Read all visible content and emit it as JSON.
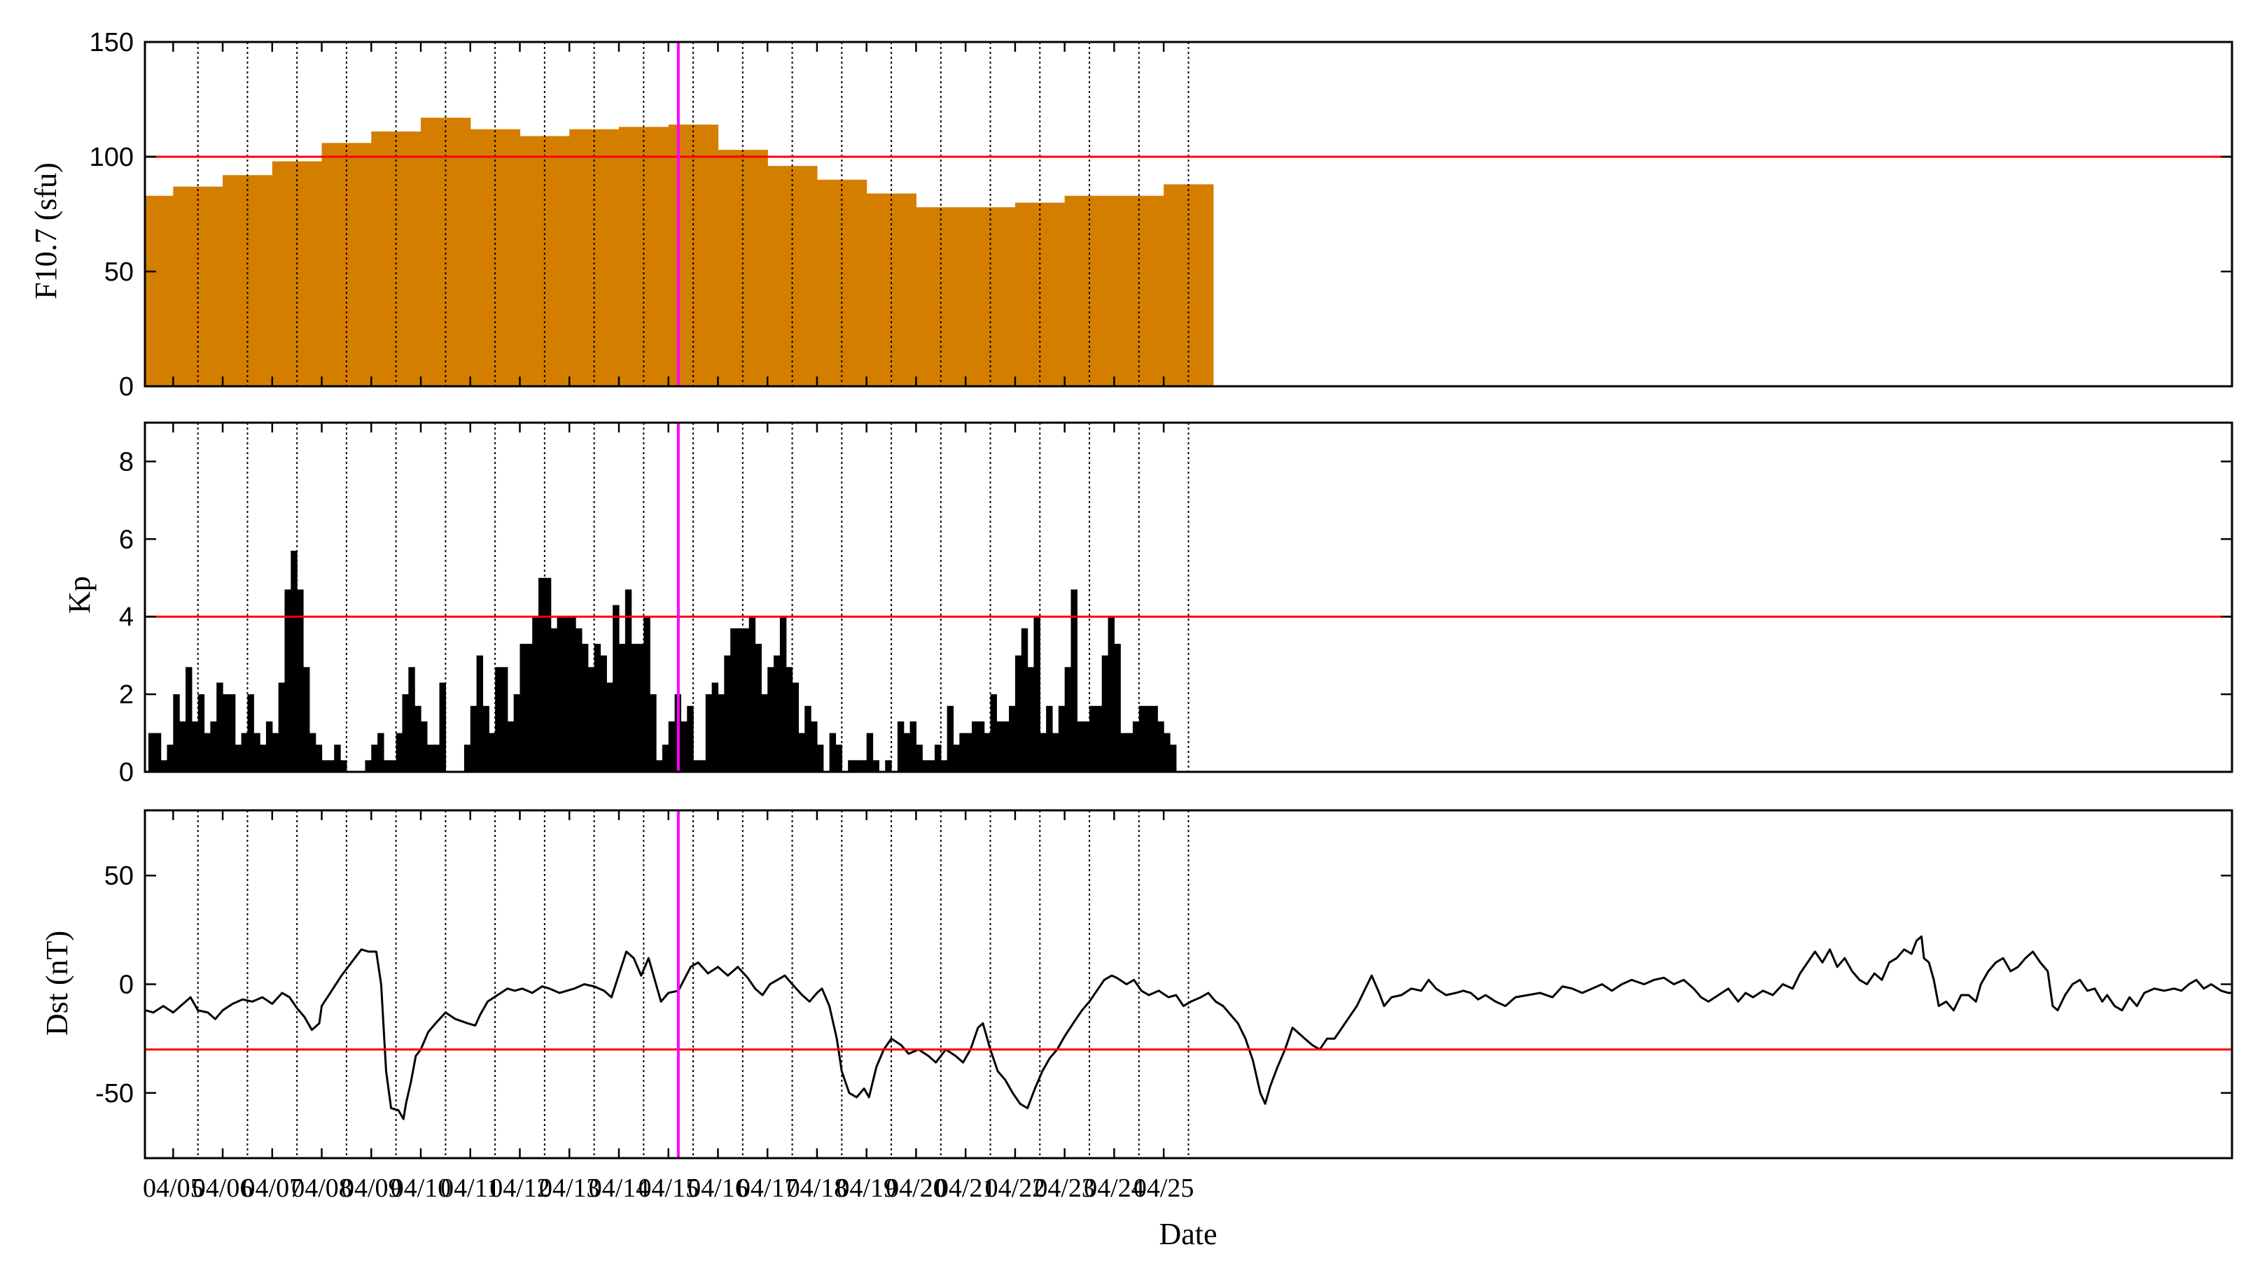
{
  "x_labels": [
    "04/05",
    "04/06",
    "04/07",
    "04/08",
    "04/09",
    "04/10",
    "04/11",
    "04/12",
    "04/13",
    "04/14",
    "04/15",
    "04/16",
    "04/17",
    "04/18",
    "04/19",
    "04/20",
    "04/21",
    "04/22",
    "04/23",
    "04/24",
    "04/25"
  ],
  "x_axis_title": "Date",
  "colors": {
    "f107_bar": "#D47E00",
    "kp_bar": "#000000",
    "dst_line": "#000000",
    "threshold": "#FF0000",
    "marker": "#FF00FF"
  },
  "chart_data": [
    {
      "id": "f107",
      "type": "bar",
      "ylabel": "F10.7 (sfu)",
      "ylim": [
        0,
        150
      ],
      "yticks": [
        0,
        50,
        100,
        150
      ],
      "threshold": 100,
      "marker_day": 10.2,
      "bar_width_days": 1.0,
      "bar_start_day": -1.0,
      "values": [
        83,
        87,
        92,
        98,
        106,
        111,
        117,
        112,
        109,
        112,
        113,
        114,
        103,
        96,
        90,
        84,
        78,
        78,
        80,
        83,
        83,
        88
      ]
    },
    {
      "id": "kp",
      "type": "bar",
      "ylabel": "Kp",
      "ylim": [
        0,
        9
      ],
      "yticks": [
        0,
        2,
        4,
        6,
        8
      ],
      "threshold": 4,
      "marker_day": 10.2,
      "bar_width_days": 0.125,
      "bar_start_day": -0.5,
      "values": [
        1.0,
        1.0,
        0.3,
        0.7,
        2.0,
        1.3,
        2.7,
        1.3,
        2.0,
        1.0,
        1.3,
        2.3,
        2.0,
        2.0,
        0.7,
        1.0,
        2.0,
        1.0,
        0.7,
        1.3,
        1.0,
        2.3,
        4.7,
        5.7,
        4.7,
        2.7,
        1.0,
        0.7,
        0.3,
        0.3,
        0.7,
        0.3,
        0.0,
        0.0,
        0.0,
        0.3,
        0.7,
        1.0,
        0.3,
        0.3,
        1.0,
        2.0,
        2.7,
        1.7,
        1.3,
        0.7,
        0.7,
        2.3,
        0.0,
        0.0,
        0.0,
        0.7,
        1.7,
        3.0,
        1.7,
        1.0,
        2.7,
        2.7,
        1.3,
        2.0,
        3.3,
        3.3,
        4.0,
        5.0,
        5.0,
        3.7,
        4.0,
        4.0,
        4.0,
        3.7,
        3.3,
        2.7,
        3.3,
        3.0,
        2.3,
        4.3,
        3.3,
        4.7,
        3.3,
        3.3,
        4.0,
        2.0,
        0.3,
        0.7,
        1.3,
        2.0,
        1.3,
        1.7,
        0.3,
        0.3,
        2.0,
        2.3,
        2.0,
        3.0,
        3.7,
        3.7,
        3.7,
        4.0,
        3.3,
        2.0,
        2.7,
        3.0,
        4.0,
        2.7,
        2.3,
        1.0,
        1.7,
        1.3,
        0.7,
        0.0,
        1.0,
        0.7,
        0.0,
        0.3,
        0.3,
        0.3,
        1.0,
        0.3,
        0.0,
        0.3,
        0.0,
        1.3,
        1.0,
        1.3,
        0.7,
        0.3,
        0.3,
        0.7,
        0.3,
        1.7,
        0.7,
        1.0,
        1.0,
        1.3,
        1.3,
        1.0,
        2.0,
        1.3,
        1.3,
        1.7,
        3.0,
        3.7,
        2.7,
        4.0,
        1.0,
        1.7,
        1.0,
        1.7,
        2.7,
        4.7,
        1.3,
        1.3,
        1.7,
        1.7,
        3.0,
        4.0,
        3.3,
        1.0,
        1.0,
        1.3,
        1.7,
        1.7,
        1.7,
        1.3,
        1.0,
        0.7
      ]
    },
    {
      "id": "dst",
      "type": "line",
      "ylabel": "Dst (nT)",
      "ylim": [
        -80,
        80
      ],
      "yticks": [
        -50,
        0,
        50
      ],
      "threshold": -30,
      "marker_day": 10.2,
      "points": [
        [
          -0.55,
          -12
        ],
        [
          -0.4,
          -13
        ],
        [
          -0.2,
          -10
        ],
        [
          0.0,
          -13
        ],
        [
          0.2,
          -9
        ],
        [
          0.35,
          -6
        ],
        [
          0.5,
          -12
        ],
        [
          0.7,
          -13
        ],
        [
          0.85,
          -16
        ],
        [
          1.0,
          -12
        ],
        [
          1.2,
          -9
        ],
        [
          1.4,
          -7
        ],
        [
          1.6,
          -8
        ],
        [
          1.8,
          -6
        ],
        [
          2.0,
          -9
        ],
        [
          2.2,
          -4
        ],
        [
          2.35,
          -6
        ],
        [
          2.5,
          -11
        ],
        [
          2.65,
          -15
        ],
        [
          2.8,
          -21
        ],
        [
          2.95,
          -18
        ],
        [
          3.0,
          -10
        ],
        [
          3.2,
          -3
        ],
        [
          3.4,
          4
        ],
        [
          3.6,
          10
        ],
        [
          3.8,
          16
        ],
        [
          3.95,
          15
        ],
        [
          4.1,
          15
        ],
        [
          4.2,
          0
        ],
        [
          4.3,
          -40
        ],
        [
          4.4,
          -57
        ],
        [
          4.55,
          -58
        ],
        [
          4.65,
          -62
        ],
        [
          4.7,
          -55
        ],
        [
          4.8,
          -45
        ],
        [
          4.9,
          -33
        ],
        [
          5.0,
          -30
        ],
        [
          5.15,
          -22
        ],
        [
          5.3,
          -18
        ],
        [
          5.5,
          -13
        ],
        [
          5.7,
          -16
        ],
        [
          5.95,
          -18
        ],
        [
          6.1,
          -19
        ],
        [
          6.2,
          -14
        ],
        [
          6.35,
          -8
        ],
        [
          6.55,
          -5
        ],
        [
          6.75,
          -2
        ],
        [
          6.9,
          -3
        ],
        [
          7.05,
          -2
        ],
        [
          7.25,
          -4
        ],
        [
          7.45,
          -1
        ],
        [
          7.6,
          -2
        ],
        [
          7.8,
          -4
        ],
        [
          7.95,
          -3
        ],
        [
          8.1,
          -2
        ],
        [
          8.3,
          0
        ],
        [
          8.5,
          -1
        ],
        [
          8.7,
          -3
        ],
        [
          8.85,
          -6
        ],
        [
          9.05,
          8
        ],
        [
          9.15,
          15
        ],
        [
          9.3,
          12
        ],
        [
          9.45,
          4
        ],
        [
          9.6,
          12
        ],
        [
          9.75,
          0
        ],
        [
          9.85,
          -8
        ],
        [
          10.0,
          -4
        ],
        [
          10.2,
          -3
        ],
        [
          10.45,
          8
        ],
        [
          10.6,
          10
        ],
        [
          10.8,
          5
        ],
        [
          11.0,
          8
        ],
        [
          11.2,
          4
        ],
        [
          11.4,
          8
        ],
        [
          11.6,
          3
        ],
        [
          11.75,
          -2
        ],
        [
          11.9,
          -5
        ],
        [
          12.05,
          0
        ],
        [
          12.2,
          2
        ],
        [
          12.35,
          4
        ],
        [
          12.5,
          0
        ],
        [
          12.7,
          -5
        ],
        [
          12.85,
          -8
        ],
        [
          13.0,
          -4
        ],
        [
          13.1,
          -2
        ],
        [
          13.25,
          -10
        ],
        [
          13.4,
          -25
        ],
        [
          13.5,
          -40
        ],
        [
          13.65,
          -50
        ],
        [
          13.8,
          -52
        ],
        [
          13.95,
          -48
        ],
        [
          14.05,
          -52
        ],
        [
          14.2,
          -38
        ],
        [
          14.35,
          -30
        ],
        [
          14.5,
          -25
        ],
        [
          14.7,
          -28
        ],
        [
          14.85,
          -32
        ],
        [
          15.05,
          -30
        ],
        [
          15.25,
          -33
        ],
        [
          15.4,
          -36
        ],
        [
          15.6,
          -30
        ],
        [
          15.8,
          -33
        ],
        [
          15.95,
          -36
        ],
        [
          16.1,
          -30
        ],
        [
          16.25,
          -20
        ],
        [
          16.35,
          -18
        ],
        [
          16.5,
          -30
        ],
        [
          16.65,
          -40
        ],
        [
          16.8,
          -44
        ],
        [
          16.95,
          -50
        ],
        [
          17.1,
          -55
        ],
        [
          17.25,
          -57
        ],
        [
          17.4,
          -48
        ],
        [
          17.55,
          -40
        ],
        [
          17.7,
          -34
        ],
        [
          17.85,
          -30
        ],
        [
          18.0,
          -24
        ],
        [
          18.2,
          -17
        ],
        [
          18.35,
          -12
        ],
        [
          18.5,
          -8
        ],
        [
          18.65,
          -3
        ],
        [
          18.8,
          2
        ],
        [
          18.95,
          4
        ],
        [
          19.05,
          3
        ],
        [
          19.25,
          0
        ],
        [
          19.4,
          2
        ],
        [
          19.55,
          -3
        ],
        [
          19.7,
          -5
        ],
        [
          19.9,
          -3
        ],
        [
          20.1,
          -6
        ],
        [
          20.25,
          -5
        ],
        [
          20.4,
          -10
        ],
        [
          20.55,
          -8
        ],
        [
          20.75,
          -6
        ],
        [
          20.9,
          -4
        ],
        [
          21.05,
          -8
        ],
        [
          21.2,
          -10
        ],
        [
          21.35,
          -14
        ],
        [
          21.5,
          -18
        ],
        [
          21.65,
          -25
        ],
        [
          21.8,
          -35
        ],
        [
          21.95,
          -50
        ],
        [
          22.05,
          -55
        ],
        [
          22.15,
          -47
        ],
        [
          22.3,
          -38
        ],
        [
          22.45,
          -30
        ],
        [
          22.6,
          -20
        ],
        [
          22.7,
          -22
        ],
        [
          22.85,
          -25
        ],
        [
          23.0,
          -28
        ],
        [
          23.15,
          -30
        ],
        [
          23.3,
          -25
        ],
        [
          23.45,
          -25
        ],
        [
          23.6,
          -20
        ],
        [
          23.75,
          -15
        ],
        [
          23.9,
          -10
        ],
        [
          24.05,
          -3
        ],
        [
          24.2,
          4
        ],
        [
          24.35,
          -4
        ],
        [
          24.45,
          -10
        ],
        [
          24.6,
          -6
        ],
        [
          24.8,
          -5
        ],
        [
          25.0,
          -2
        ],
        [
          25.2,
          -3
        ],
        [
          25.35,
          2
        ],
        [
          25.5,
          -2
        ],
        [
          25.7,
          -5
        ],
        [
          25.9,
          -4
        ],
        [
          26.05,
          -3
        ],
        [
          26.2,
          -4
        ],
        [
          26.35,
          -7
        ],
        [
          26.5,
          -5
        ],
        [
          26.7,
          -8
        ],
        [
          26.9,
          -10
        ],
        [
          27.1,
          -6
        ],
        [
          27.35,
          -5
        ],
        [
          27.6,
          -4
        ],
        [
          27.85,
          -6
        ],
        [
          28.05,
          -1
        ],
        [
          28.25,
          -2
        ],
        [
          28.45,
          -4
        ],
        [
          28.65,
          -2
        ],
        [
          28.85,
          0
        ],
        [
          29.05,
          -3
        ],
        [
          29.25,
          0
        ],
        [
          29.45,
          2
        ],
        [
          29.7,
          0
        ],
        [
          29.9,
          2
        ],
        [
          30.1,
          3
        ],
        [
          30.3,
          0
        ],
        [
          30.5,
          2
        ],
        [
          30.7,
          -2
        ],
        [
          30.85,
          -6
        ],
        [
          31.0,
          -8
        ],
        [
          31.2,
          -5
        ],
        [
          31.4,
          -2
        ],
        [
          31.6,
          -8
        ],
        [
          31.75,
          -4
        ],
        [
          31.9,
          -6
        ],
        [
          32.1,
          -3
        ],
        [
          32.3,
          -5
        ],
        [
          32.5,
          0
        ],
        [
          32.7,
          -2
        ],
        [
          32.85,
          5
        ],
        [
          33.0,
          10
        ],
        [
          33.15,
          15
        ],
        [
          33.3,
          10
        ],
        [
          33.45,
          16
        ],
        [
          33.6,
          8
        ],
        [
          33.75,
          12
        ],
        [
          33.9,
          6
        ],
        [
          34.05,
          2
        ],
        [
          34.2,
          0
        ],
        [
          34.35,
          5
        ],
        [
          34.5,
          2
        ],
        [
          34.65,
          10
        ],
        [
          34.8,
          12
        ],
        [
          34.95,
          16
        ],
        [
          35.1,
          14
        ],
        [
          35.2,
          20
        ],
        [
          35.3,
          22
        ],
        [
          35.35,
          12
        ],
        [
          35.45,
          10
        ],
        [
          35.55,
          2
        ],
        [
          35.65,
          -10
        ],
        [
          35.8,
          -8
        ],
        [
          35.95,
          -12
        ],
        [
          36.1,
          -5
        ],
        [
          36.25,
          -5
        ],
        [
          36.4,
          -8
        ],
        [
          36.5,
          0
        ],
        [
          36.65,
          6
        ],
        [
          36.8,
          10
        ],
        [
          36.95,
          12
        ],
        [
          37.1,
          6
        ],
        [
          37.25,
          8
        ],
        [
          37.4,
          12
        ],
        [
          37.55,
          15
        ],
        [
          37.7,
          10
        ],
        [
          37.85,
          6
        ],
        [
          37.95,
          -10
        ],
        [
          38.05,
          -12
        ],
        [
          38.2,
          -5
        ],
        [
          38.35,
          0
        ],
        [
          38.5,
          2
        ],
        [
          38.65,
          -3
        ],
        [
          38.8,
          -2
        ],
        [
          38.95,
          -8
        ],
        [
          39.05,
          -5
        ],
        [
          39.2,
          -10
        ],
        [
          39.35,
          -12
        ],
        [
          39.5,
          -6
        ],
        [
          39.65,
          -10
        ],
        [
          39.8,
          -4
        ],
        [
          40.0,
          -2
        ],
        [
          40.2,
          -3
        ],
        [
          40.4,
          -2
        ],
        [
          40.55,
          -3
        ],
        [
          40.7,
          0
        ],
        [
          40.85,
          2
        ],
        [
          41.0,
          -2
        ],
        [
          41.15,
          0
        ],
        [
          41.35,
          -3
        ],
        [
          41.5,
          -4
        ],
        [
          41.55,
          -4
        ]
      ]
    }
  ]
}
